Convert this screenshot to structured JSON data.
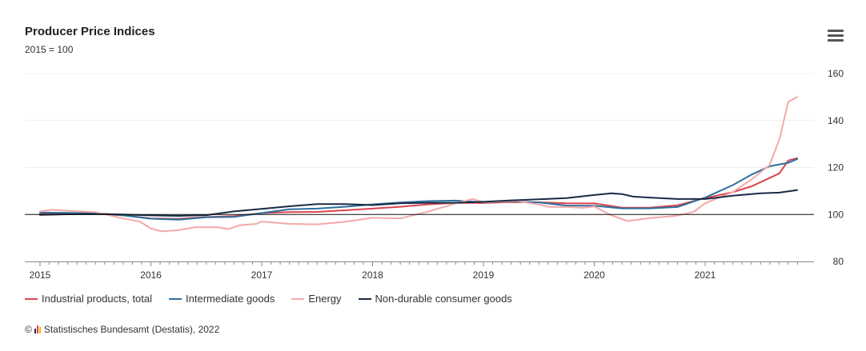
{
  "chart_data": {
    "type": "line",
    "title": "Producer Price Indices",
    "subtitle": "2015 = 100",
    "x_ticks": [
      "2015",
      "2016",
      "2017",
      "2018",
      "2019",
      "2020",
      "2021"
    ],
    "y_ticks": [
      80,
      100,
      120,
      140,
      160
    ],
    "ylim": [
      80,
      160
    ],
    "xlim": [
      2015.0,
      2021.917
    ],
    "grid": true,
    "baseline": 100,
    "legend_position": "bottom-left",
    "series": [
      {
        "name": "Industrial products, total",
        "color": "#d9444c",
        "points": [
          [
            2015.0,
            100.3
          ],
          [
            2015.25,
            100.6
          ],
          [
            2015.5,
            100.6
          ],
          [
            2015.75,
            99.7
          ],
          [
            2016.0,
            98.3
          ],
          [
            2016.25,
            98.1
          ],
          [
            2016.5,
            98.9
          ],
          [
            2016.75,
            99.3
          ],
          [
            2017.0,
            100.6
          ],
          [
            2017.25,
            101.0
          ],
          [
            2017.5,
            101.1
          ],
          [
            2017.75,
            101.8
          ],
          [
            2018.0,
            102.5
          ],
          [
            2018.25,
            103.3
          ],
          [
            2018.5,
            104.3
          ],
          [
            2018.75,
            105.0
          ],
          [
            2019.0,
            104.9
          ],
          [
            2019.25,
            105.3
          ],
          [
            2019.5,
            105.2
          ],
          [
            2019.75,
            104.8
          ],
          [
            2020.0,
            104.7
          ],
          [
            2020.25,
            102.9
          ],
          [
            2020.5,
            102.9
          ],
          [
            2020.75,
            103.9
          ],
          [
            2021.0,
            107.0
          ],
          [
            2021.25,
            109.5
          ],
          [
            2021.42,
            112.0
          ],
          [
            2021.58,
            115.5
          ],
          [
            2021.67,
            117.5
          ],
          [
            2021.75,
            123.0
          ],
          [
            2021.83,
            124.0
          ]
        ]
      },
      {
        "name": "Intermediate goods",
        "color": "#2e6f9e",
        "points": [
          [
            2015.0,
            100.8
          ],
          [
            2015.25,
            100.7
          ],
          [
            2015.5,
            100.5
          ],
          [
            2015.75,
            99.6
          ],
          [
            2016.0,
            98.2
          ],
          [
            2016.25,
            97.8
          ],
          [
            2016.5,
            98.8
          ],
          [
            2016.75,
            99.0
          ],
          [
            2017.0,
            100.6
          ],
          [
            2017.25,
            102.2
          ],
          [
            2017.5,
            102.5
          ],
          [
            2017.75,
            103.3
          ],
          [
            2018.0,
            104.3
          ],
          [
            2018.25,
            105.1
          ],
          [
            2018.5,
            105.7
          ],
          [
            2018.75,
            105.9
          ],
          [
            2019.0,
            105.2
          ],
          [
            2019.25,
            105.6
          ],
          [
            2019.5,
            105.1
          ],
          [
            2019.75,
            103.8
          ],
          [
            2020.0,
            103.7
          ],
          [
            2020.25,
            102.6
          ],
          [
            2020.5,
            102.6
          ],
          [
            2020.75,
            103.2
          ],
          [
            2021.0,
            107.2
          ],
          [
            2021.25,
            112.5
          ],
          [
            2021.42,
            117.0
          ],
          [
            2021.58,
            120.5
          ],
          [
            2021.75,
            122.0
          ],
          [
            2021.83,
            123.6
          ]
        ]
      },
      {
        "name": "Energy",
        "color": "#f2a9a9",
        "points": [
          [
            2015.0,
            101.2
          ],
          [
            2015.1,
            102.0
          ],
          [
            2015.25,
            101.6
          ],
          [
            2015.5,
            101.0
          ],
          [
            2015.75,
            98.3
          ],
          [
            2015.9,
            97.0
          ],
          [
            2016.0,
            94.0
          ],
          [
            2016.1,
            92.8
          ],
          [
            2016.25,
            93.3
          ],
          [
            2016.4,
            94.6
          ],
          [
            2016.6,
            94.6
          ],
          [
            2016.7,
            93.8
          ],
          [
            2016.8,
            95.4
          ],
          [
            2016.95,
            96.0
          ],
          [
            2017.0,
            97.0
          ],
          [
            2017.25,
            96.0
          ],
          [
            2017.5,
            95.8
          ],
          [
            2017.75,
            96.9
          ],
          [
            2018.0,
            98.6
          ],
          [
            2018.25,
            98.3
          ],
          [
            2018.5,
            101.2
          ],
          [
            2018.75,
            104.7
          ],
          [
            2018.9,
            106.6
          ],
          [
            2019.0,
            105.3
          ],
          [
            2019.1,
            105.5
          ],
          [
            2019.3,
            105.8
          ],
          [
            2019.5,
            104.2
          ],
          [
            2019.6,
            103.2
          ],
          [
            2019.75,
            103.2
          ],
          [
            2019.9,
            102.8
          ],
          [
            2020.0,
            103.4
          ],
          [
            2020.15,
            99.7
          ],
          [
            2020.3,
            97.2
          ],
          [
            2020.5,
            98.5
          ],
          [
            2020.75,
            99.5
          ],
          [
            2020.9,
            101.2
          ],
          [
            2021.0,
            104.8
          ],
          [
            2021.25,
            109.5
          ],
          [
            2021.42,
            115.0
          ],
          [
            2021.58,
            121.0
          ],
          [
            2021.67,
            132.0
          ],
          [
            2021.75,
            148.0
          ],
          [
            2021.83,
            150.0
          ]
        ]
      },
      {
        "name": "Non-durable consumer goods",
        "color": "#1a2b45",
        "points": [
          [
            2015.0,
            99.8
          ],
          [
            2015.25,
            100.1
          ],
          [
            2015.5,
            100.2
          ],
          [
            2015.75,
            100.0
          ],
          [
            2016.0,
            99.6
          ],
          [
            2016.25,
            99.4
          ],
          [
            2016.5,
            99.7
          ],
          [
            2016.75,
            101.3
          ],
          [
            2017.0,
            102.4
          ],
          [
            2017.25,
            103.5
          ],
          [
            2017.5,
            104.4
          ],
          [
            2017.75,
            104.4
          ],
          [
            2018.0,
            104.0
          ],
          [
            2018.25,
            104.8
          ],
          [
            2018.5,
            105.0
          ],
          [
            2018.75,
            105.0
          ],
          [
            2019.0,
            105.4
          ],
          [
            2019.25,
            106.0
          ],
          [
            2019.5,
            106.5
          ],
          [
            2019.75,
            107.0
          ],
          [
            2020.0,
            108.3
          ],
          [
            2020.15,
            109.0
          ],
          [
            2020.25,
            108.7
          ],
          [
            2020.35,
            107.6
          ],
          [
            2020.5,
            107.2
          ],
          [
            2020.75,
            106.6
          ],
          [
            2021.0,
            106.6
          ],
          [
            2021.25,
            108.0
          ],
          [
            2021.5,
            109.0
          ],
          [
            2021.67,
            109.3
          ],
          [
            2021.83,
            110.4
          ]
        ]
      }
    ]
  },
  "credit": {
    "prefix": "©",
    "text": "Statistisches Bundesamt (Destatis), 2022",
    "logo_colors": [
      "#1a2b45",
      "#d9444c",
      "#f3b300"
    ]
  },
  "menu": {
    "icon": "hamburger-menu-icon"
  }
}
